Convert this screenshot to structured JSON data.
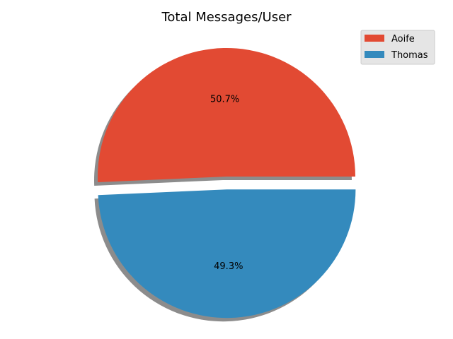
{
  "chart_data": {
    "type": "pie",
    "title": "Total Messages/User",
    "labels": [
      "Aoife",
      "Thomas"
    ],
    "values": [
      50.7,
      49.3
    ],
    "percent_labels": [
      "50.7%",
      "49.3%"
    ],
    "colors": [
      "#E24A33",
      "#348ABD"
    ],
    "explode": [
      0,
      0.1
    ],
    "shadow": true,
    "start_angle_deg": 0,
    "legend_position": "top-right"
  }
}
